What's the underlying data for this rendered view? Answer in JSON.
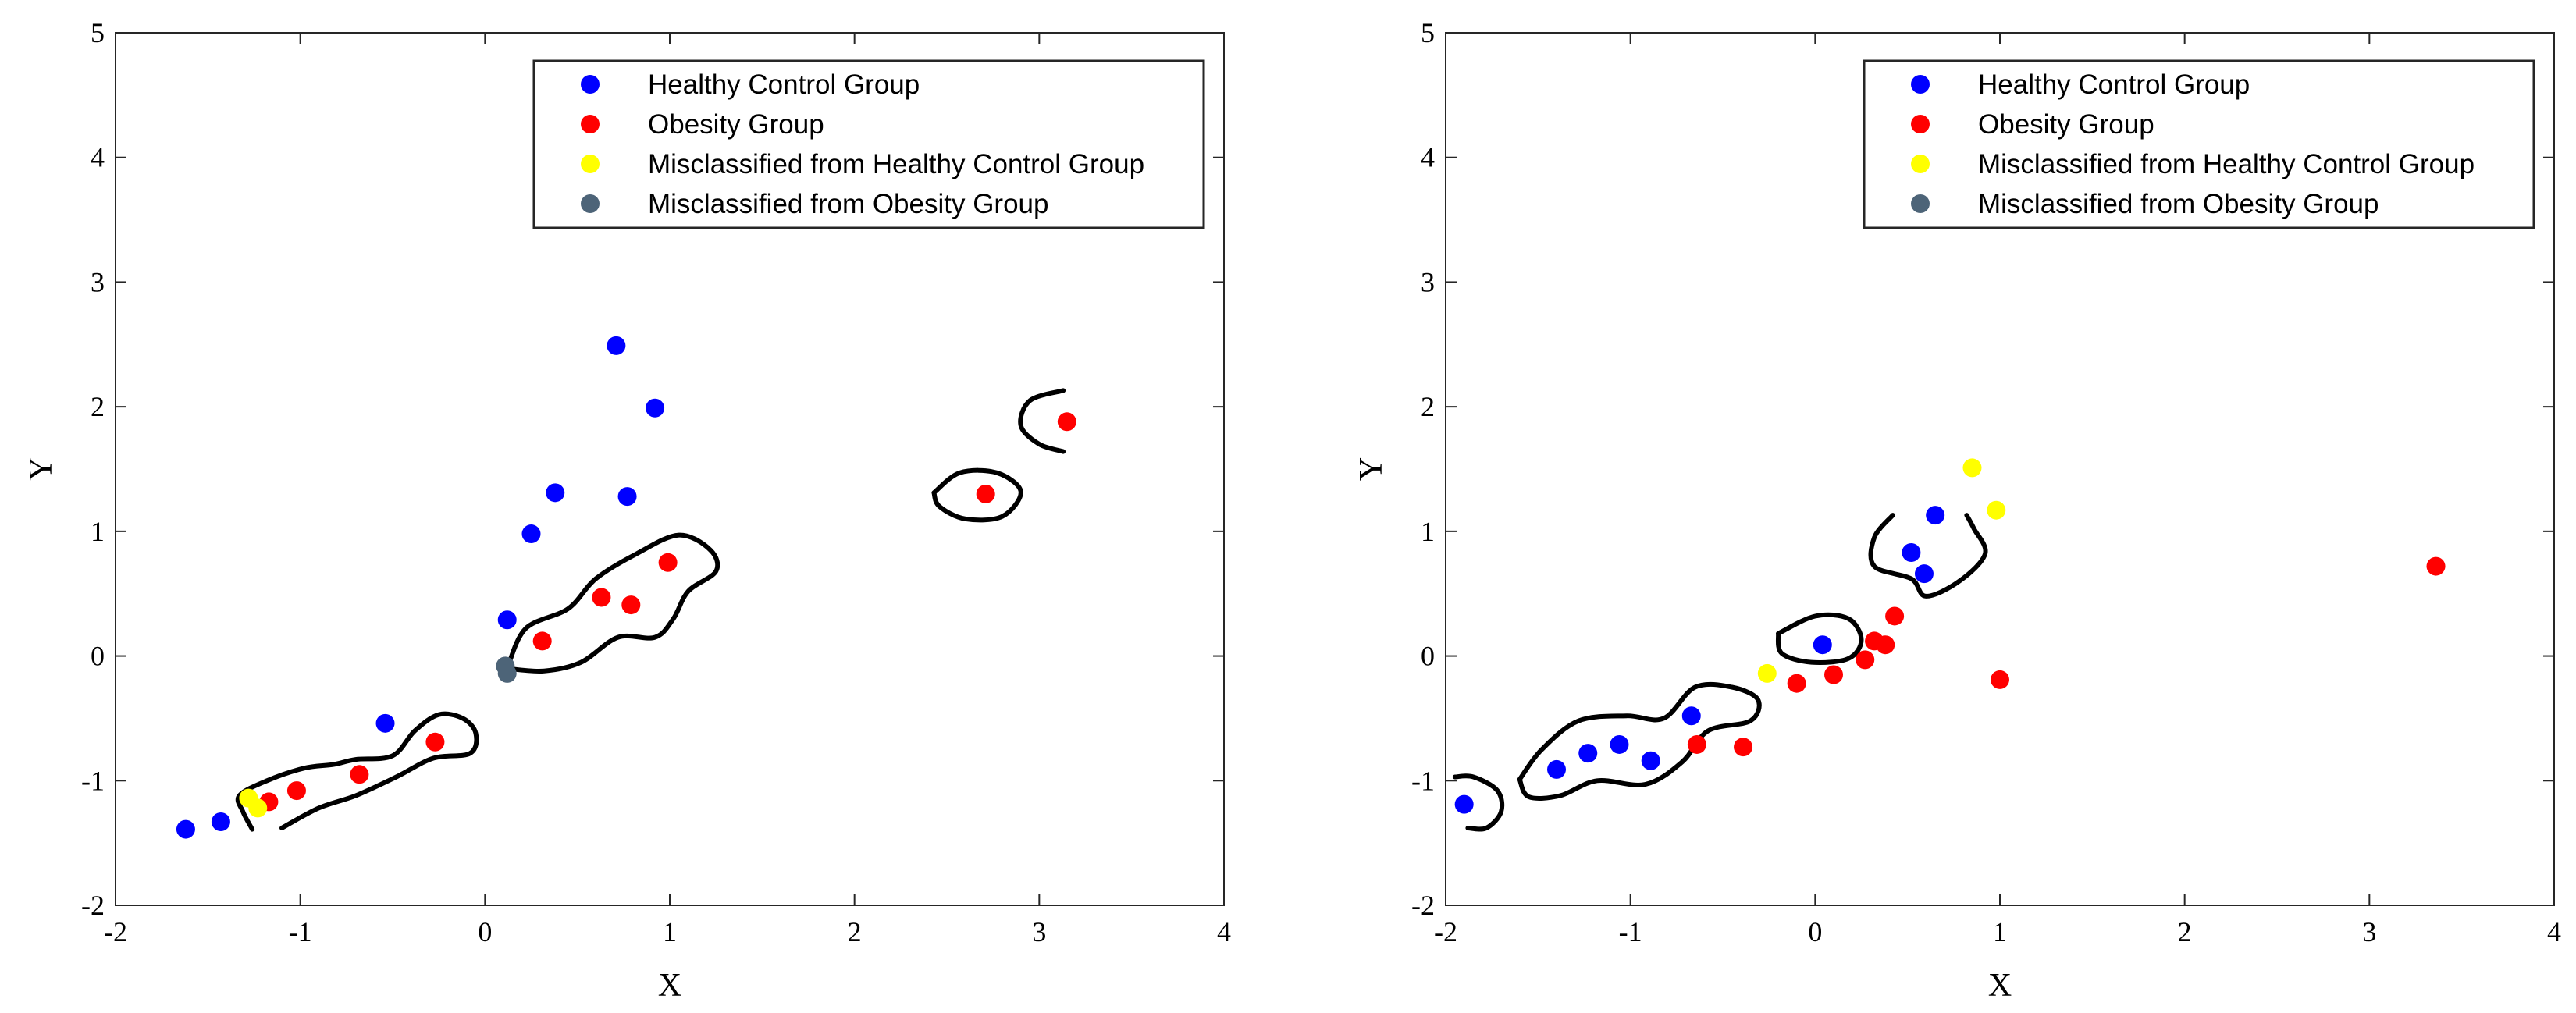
{
  "chart_data": [
    {
      "type": "scatter",
      "title": "",
      "xlabel": "X",
      "ylabel": "Y",
      "xlim": [
        -2,
        4
      ],
      "ylim": [
        -2,
        5
      ],
      "xticks": [
        "-2",
        "-1",
        "0",
        "1",
        "2",
        "3",
        "4"
      ],
      "yticks": [
        "-2",
        "-1",
        "0",
        "1",
        "2",
        "3",
        "4",
        "5"
      ],
      "legend_position": "top-right",
      "grid": false,
      "series": [
        {
          "name": "Healthy Control Group",
          "color": "#0000ff",
          "points": [
            [
              -1.62,
              -1.39
            ],
            [
              -1.43,
              -1.33
            ],
            [
              -0.54,
              -0.54
            ],
            [
              0.12,
              0.29
            ],
            [
              0.25,
              0.98
            ],
            [
              0.38,
              1.31
            ],
            [
              0.71,
              2.49
            ],
            [
              0.77,
              1.28
            ],
            [
              0.92,
              1.99
            ]
          ]
        },
        {
          "name": "Obesity Group",
          "color": "#ff0000",
          "points": [
            [
              -1.17,
              -1.17
            ],
            [
              -1.02,
              -1.08
            ],
            [
              -0.68,
              -0.95
            ],
            [
              -0.27,
              -0.69
            ],
            [
              0.31,
              0.12
            ],
            [
              0.63,
              0.47
            ],
            [
              0.79,
              0.41
            ],
            [
              0.99,
              0.75
            ],
            [
              2.71,
              1.3
            ],
            [
              3.15,
              1.88
            ]
          ]
        },
        {
          "name": "Misclassified from Healthy Control Group",
          "color": "#ffff00",
          "points": [
            [
              -1.28,
              -1.14
            ],
            [
              -1.23,
              -1.22
            ]
          ]
        },
        {
          "name": "Misclassified from Obesity Group",
          "color": "#4d6478",
          "points": [
            [
              0.11,
              -0.08
            ],
            [
              0.12,
              -0.14
            ]
          ]
        }
      ],
      "decision_boundary": {
        "color": "#000000",
        "curves": [
          [
            [
              -1.26,
              -1.39
            ],
            [
              -1.31,
              -1.25
            ],
            [
              -1.33,
              -1.12
            ],
            [
              -1.18,
              -1.0
            ],
            [
              -0.98,
              -0.9
            ],
            [
              -0.82,
              -0.87
            ],
            [
              -0.7,
              -0.83
            ],
            [
              -0.5,
              -0.8
            ],
            [
              -0.38,
              -0.6
            ],
            [
              -0.25,
              -0.47
            ],
            [
              -0.12,
              -0.5
            ],
            [
              -0.05,
              -0.62
            ],
            [
              -0.08,
              -0.78
            ],
            [
              -0.28,
              -0.82
            ],
            [
              -0.48,
              -0.97
            ],
            [
              -0.7,
              -1.12
            ],
            [
              -0.9,
              -1.22
            ],
            [
              -1.1,
              -1.38
            ]
          ],
          [
            [
              0.12,
              -0.1
            ],
            [
              0.22,
              0.22
            ],
            [
              0.45,
              0.38
            ],
            [
              0.6,
              0.62
            ],
            [
              0.82,
              0.82
            ],
            [
              1.05,
              0.97
            ],
            [
              1.22,
              0.85
            ],
            [
              1.25,
              0.68
            ],
            [
              1.1,
              0.52
            ],
            [
              1.02,
              0.3
            ],
            [
              0.92,
              0.15
            ],
            [
              0.72,
              0.15
            ],
            [
              0.52,
              -0.05
            ],
            [
              0.32,
              -0.12
            ],
            [
              0.12,
              -0.1
            ]
          ],
          [
            [
              2.43,
              1.31
            ],
            [
              2.57,
              1.47
            ],
            [
              2.77,
              1.47
            ],
            [
              2.9,
              1.32
            ],
            [
              2.8,
              1.12
            ],
            [
              2.6,
              1.1
            ],
            [
              2.46,
              1.2
            ],
            [
              2.43,
              1.31
            ]
          ],
          [
            [
              3.13,
              2.13
            ],
            [
              2.95,
              2.05
            ],
            [
              2.9,
              1.85
            ],
            [
              3.0,
              1.7
            ],
            [
              3.13,
              1.64
            ]
          ]
        ]
      }
    },
    {
      "type": "scatter",
      "title": "",
      "xlabel": "X",
      "ylabel": "Y",
      "xlim": [
        -2,
        4
      ],
      "ylim": [
        -2,
        5
      ],
      "xticks": [
        "-2",
        "-1",
        "0",
        "1",
        "2",
        "3",
        "4"
      ],
      "yticks": [
        "-2",
        "-1",
        "0",
        "1",
        "2",
        "3",
        "4",
        "5"
      ],
      "legend_position": "top-right",
      "grid": false,
      "series": [
        {
          "name": "Healthy Control Group",
          "color": "#0000ff",
          "points": [
            [
              -1.9,
              -1.19
            ],
            [
              -1.4,
              -0.91
            ],
            [
              -1.23,
              -0.78
            ],
            [
              -1.06,
              -0.71
            ],
            [
              -0.89,
              -0.84
            ],
            [
              -0.67,
              -0.48
            ],
            [
              0.04,
              0.09
            ],
            [
              0.52,
              0.83
            ],
            [
              0.59,
              0.66
            ],
            [
              0.65,
              1.13
            ]
          ]
        },
        {
          "name": "Obesity Group",
          "color": "#ff0000",
          "points": [
            [
              -0.64,
              -0.71
            ],
            [
              -0.39,
              -0.73
            ],
            [
              -0.1,
              -0.22
            ],
            [
              0.1,
              -0.15
            ],
            [
              0.27,
              -0.03
            ],
            [
              0.32,
              0.12
            ],
            [
              0.38,
              0.09
            ],
            [
              0.43,
              0.32
            ],
            [
              1.0,
              -0.19
            ],
            [
              3.36,
              0.72
            ]
          ]
        },
        {
          "name": "Misclassified from Healthy Control Group",
          "color": "#ffff00",
          "points": [
            [
              -0.26,
              -0.14
            ],
            [
              0.85,
              1.51
            ],
            [
              0.98,
              1.17
            ]
          ]
        },
        {
          "name": "Misclassified from Obesity Group",
          "color": "#4d6478",
          "points": []
        }
      ],
      "decision_boundary": {
        "color": "#000000",
        "curves": [
          [
            [
              -1.95,
              -0.97
            ],
            [
              -1.85,
              -0.97
            ],
            [
              -1.72,
              -1.08
            ],
            [
              -1.7,
              -1.25
            ],
            [
              -1.78,
              -1.38
            ],
            [
              -1.88,
              -1.38
            ]
          ],
          [
            [
              -1.6,
              -0.99
            ],
            [
              -1.48,
              -0.75
            ],
            [
              -1.28,
              -0.52
            ],
            [
              -1.02,
              -0.48
            ],
            [
              -0.82,
              -0.5
            ],
            [
              -0.65,
              -0.25
            ],
            [
              -0.45,
              -0.25
            ],
            [
              -0.31,
              -0.35
            ],
            [
              -0.35,
              -0.52
            ],
            [
              -0.58,
              -0.6
            ],
            [
              -0.72,
              -0.85
            ],
            [
              -0.92,
              -1.03
            ],
            [
              -1.18,
              -1.0
            ],
            [
              -1.38,
              -1.12
            ],
            [
              -1.55,
              -1.13
            ],
            [
              -1.6,
              -0.99
            ]
          ],
          [
            [
              -0.2,
              0.18
            ],
            [
              0.0,
              0.32
            ],
            [
              0.18,
              0.3
            ],
            [
              0.25,
              0.13
            ],
            [
              0.18,
              -0.02
            ],
            [
              -0.02,
              -0.05
            ],
            [
              -0.18,
              0.02
            ],
            [
              -0.2,
              0.18
            ]
          ],
          [
            [
              0.42,
              1.13
            ],
            [
              0.32,
              0.95
            ],
            [
              0.32,
              0.72
            ],
            [
              0.52,
              0.62
            ],
            [
              0.6,
              0.48
            ],
            [
              0.78,
              0.6
            ],
            [
              0.92,
              0.82
            ],
            [
              0.86,
              1.02
            ],
            [
              0.82,
              1.13
            ]
          ]
        ]
      }
    }
  ]
}
